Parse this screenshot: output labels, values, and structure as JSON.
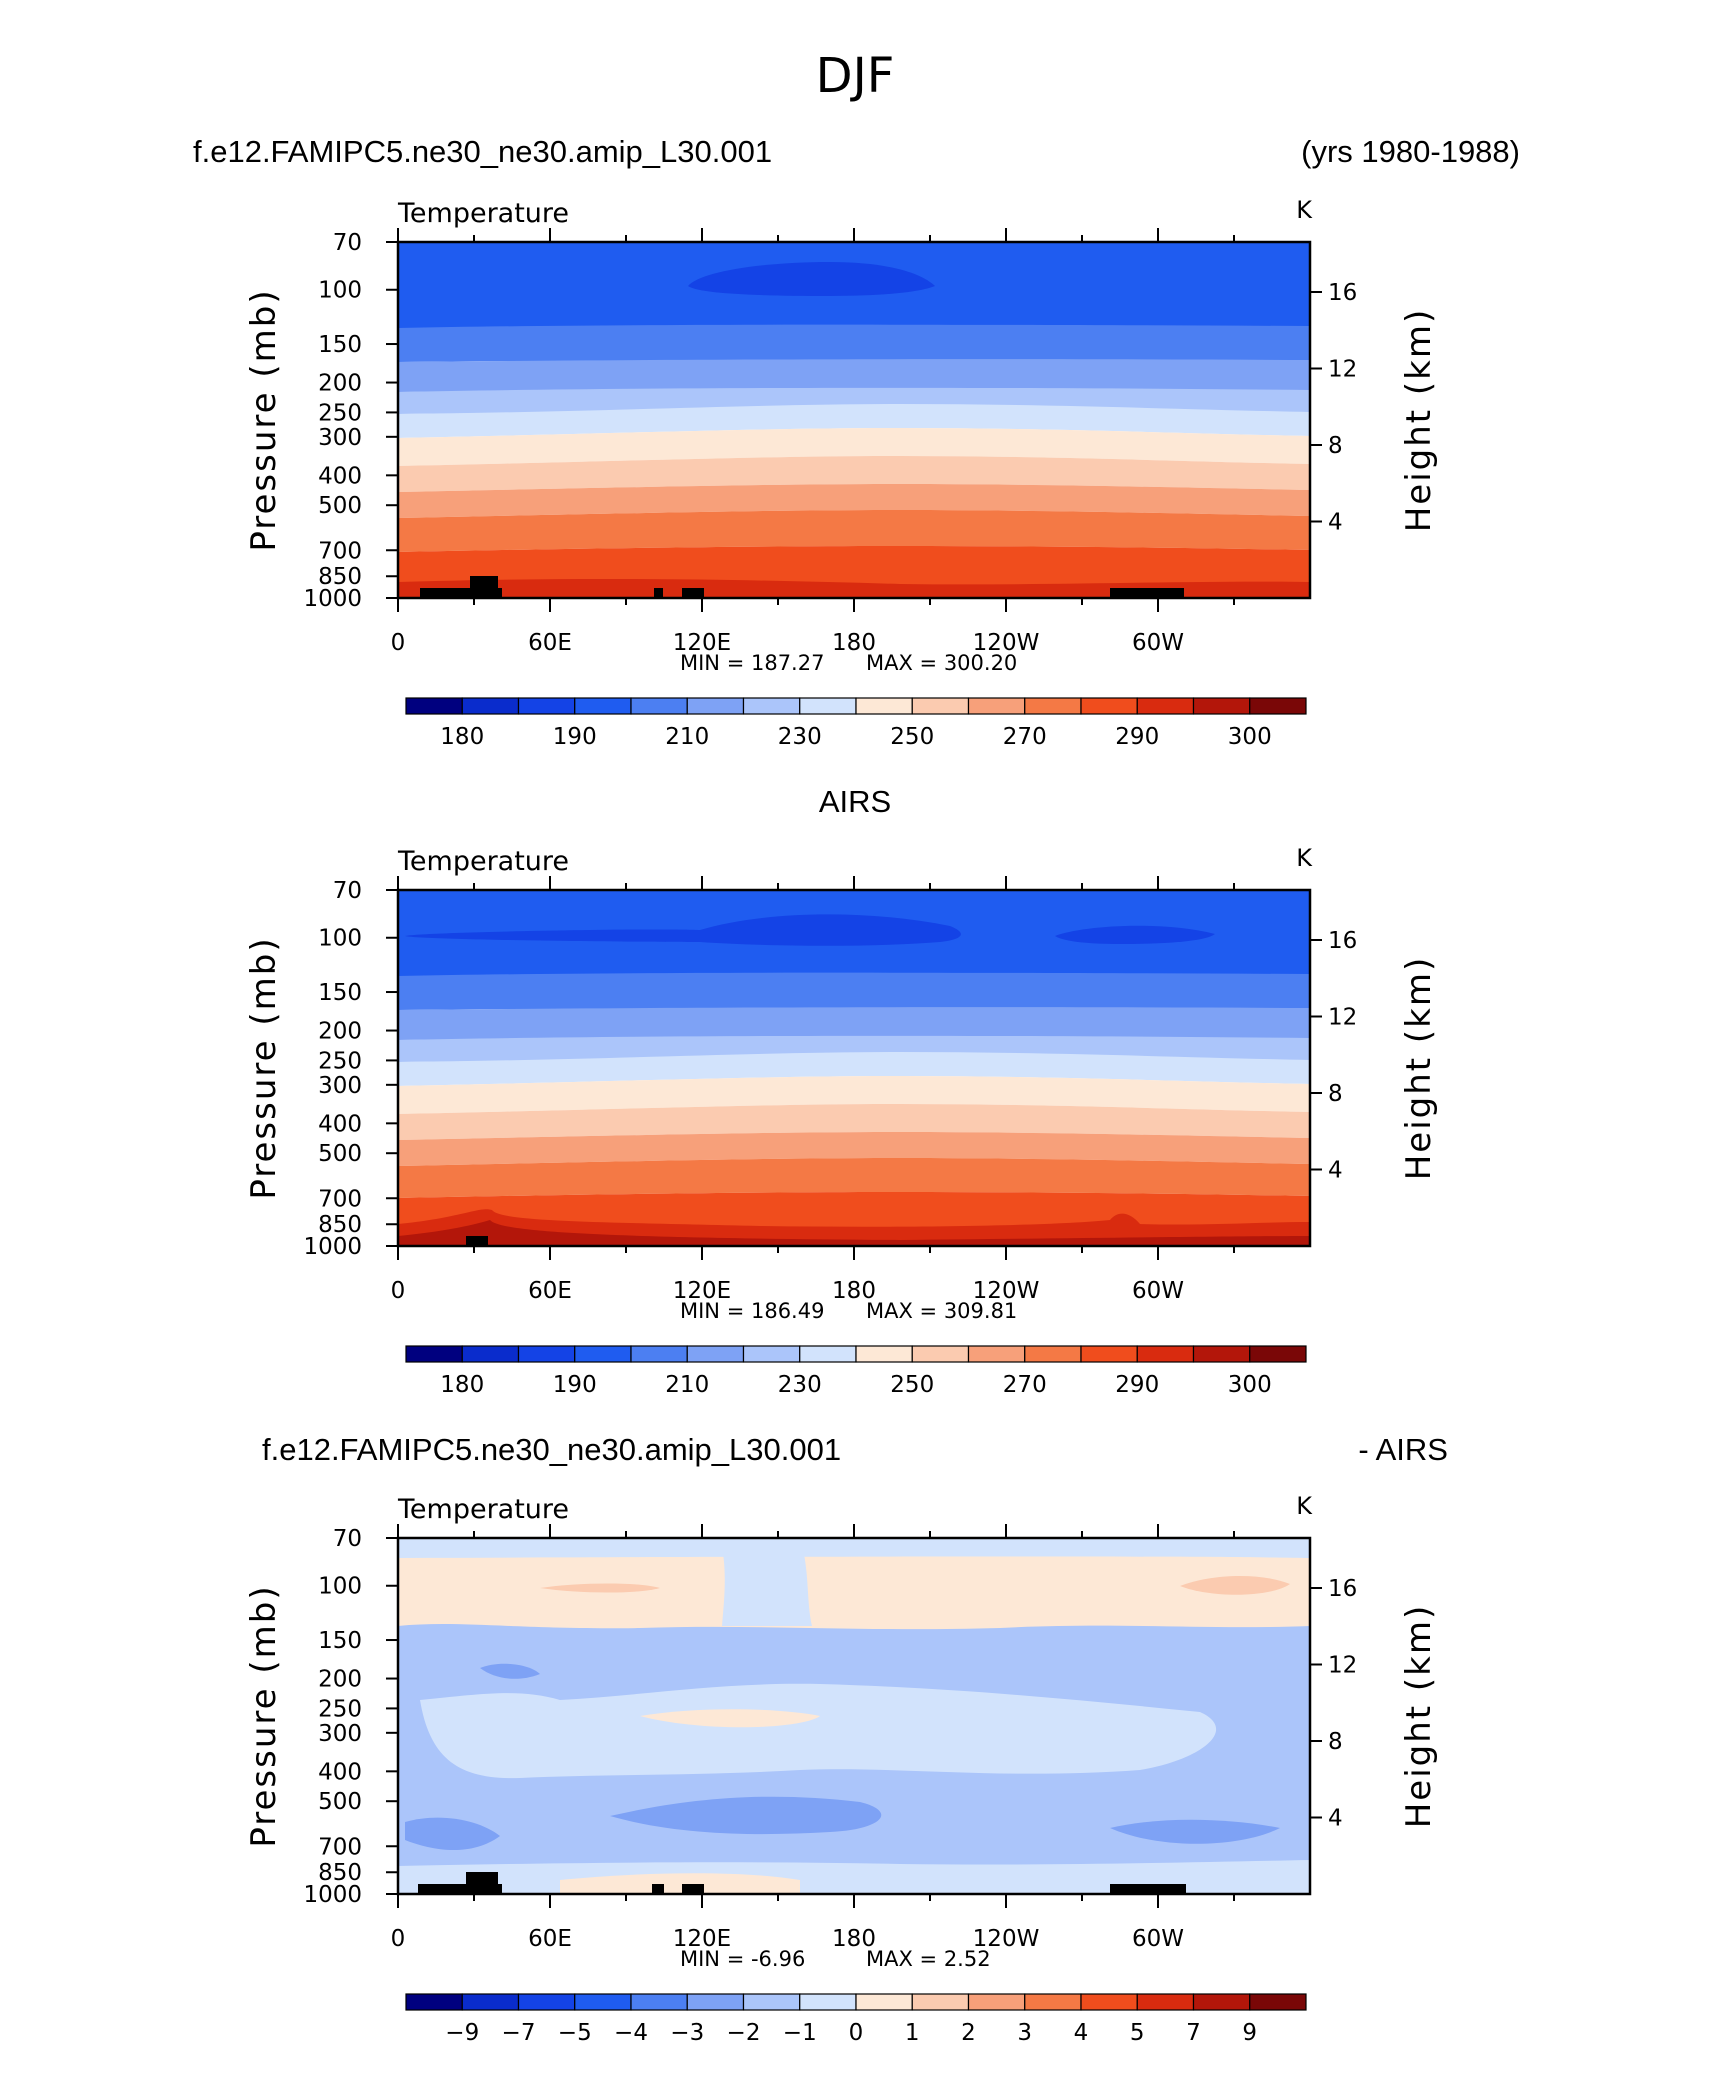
{
  "figure": {
    "title": "DJF",
    "panel_titles": {
      "p1_left": "f.e12.FAMIPC5.ne30_ne30.amip_L30.001",
      "p1_right": "(yrs 1980-1988)",
      "p2_center": "AIRS",
      "p3_left": "f.e12.FAMIPC5.ne30_ne30.amip_L30.001",
      "p3_right": "- AIRS"
    }
  },
  "chart_data": [
    {
      "id": "model",
      "type": "heatmap",
      "variable": "Temperature",
      "units": "K",
      "xlabel": "",
      "ylabel": "Pressure (mb)",
      "ylabel_right": "Height (km)",
      "x_ticks": [
        "0",
        "60E",
        "120E",
        "180",
        "120W",
        "60W"
      ],
      "x_tick_lon": [
        0,
        60,
        120,
        180,
        240,
        300
      ],
      "xlim": [
        0,
        360
      ],
      "y_ticks": [
        70,
        100,
        150,
        200,
        250,
        300,
        400,
        500,
        700,
        850,
        1000
      ],
      "ylim": [
        1000,
        70
      ],
      "height_ticks": [
        16,
        12,
        8,
        4
      ],
      "min_label": "MIN =  187.27",
      "max_label": "MAX =  300.20",
      "min": 187.27,
      "max": 300.2,
      "colorbar_levels": [
        180,
        185,
        190,
        200,
        210,
        220,
        230,
        240,
        250,
        260,
        270,
        280,
        290,
        295,
        300
      ],
      "colorbar_labels": [
        "180",
        "190",
        "210",
        "230",
        "250",
        "270",
        "290",
        "300"
      ],
      "colors": [
        "#00007f",
        "#0a2ccc",
        "#1443e6",
        "#1f5cf0",
        "#4c7ff2",
        "#7ea2f5",
        "#abc5fa",
        "#d2e3fc",
        "#fde8d6",
        "#fbcbb0",
        "#f7a07a",
        "#f47945",
        "#f04d1d",
        "#d92b0f",
        "#b3160a",
        "#7a0707"
      ],
      "profile": [
        {
          "p": 70,
          "T": 200
        },
        {
          "p": 100,
          "T": 196
        },
        {
          "p": 150,
          "T": 208
        },
        {
          "p": 200,
          "T": 216
        },
        {
          "p": 250,
          "T": 225
        },
        {
          "p": 300,
          "T": 236
        },
        {
          "p": 400,
          "T": 252
        },
        {
          "p": 500,
          "T": 262
        },
        {
          "p": 700,
          "T": 278
        },
        {
          "p": 850,
          "T": 287
        },
        {
          "p": 1000,
          "T": 297
        }
      ]
    },
    {
      "id": "airs",
      "type": "heatmap",
      "variable": "Temperature",
      "units": "K",
      "xlabel": "",
      "ylabel": "Pressure (mb)",
      "ylabel_right": "Height (km)",
      "x_ticks": [
        "0",
        "60E",
        "120E",
        "180",
        "120W",
        "60W"
      ],
      "x_tick_lon": [
        0,
        60,
        120,
        180,
        240,
        300
      ],
      "xlim": [
        0,
        360
      ],
      "y_ticks": [
        70,
        100,
        150,
        200,
        250,
        300,
        400,
        500,
        700,
        850,
        1000
      ],
      "ylim": [
        1000,
        70
      ],
      "height_ticks": [
        16,
        12,
        8,
        4
      ],
      "min_label": "MIN =  186.49",
      "max_label": "MAX =  309.81",
      "min": 186.49,
      "max": 309.81,
      "colorbar_levels": [
        180,
        185,
        190,
        200,
        210,
        220,
        230,
        240,
        250,
        260,
        270,
        280,
        290,
        295,
        300
      ],
      "colorbar_labels": [
        "180",
        "190",
        "210",
        "230",
        "250",
        "270",
        "290",
        "300"
      ],
      "colors": [
        "#00007f",
        "#0a2ccc",
        "#1443e6",
        "#1f5cf0",
        "#4c7ff2",
        "#7ea2f5",
        "#abc5fa",
        "#d2e3fc",
        "#fde8d6",
        "#fbcbb0",
        "#f7a07a",
        "#f47945",
        "#f04d1d",
        "#d92b0f",
        "#b3160a",
        "#7a0707"
      ]
    },
    {
      "id": "difference",
      "type": "heatmap",
      "variable": "Temperature",
      "units": "K",
      "xlabel": "",
      "ylabel": "Pressure (mb)",
      "ylabel_right": "Height (km)",
      "x_ticks": [
        "0",
        "60E",
        "120E",
        "180",
        "120W",
        "60W"
      ],
      "x_tick_lon": [
        0,
        60,
        120,
        180,
        240,
        300
      ],
      "xlim": [
        0,
        360
      ],
      "y_ticks": [
        70,
        100,
        150,
        200,
        250,
        300,
        400,
        500,
        700,
        850,
        1000
      ],
      "ylim": [
        1000,
        70
      ],
      "height_ticks": [
        16,
        12,
        8,
        4
      ],
      "min_label": "MIN =   -6.96",
      "max_label": "MAX =    2.52",
      "min": -6.96,
      "max": 2.52,
      "colorbar_levels": [
        -9,
        -7,
        -5,
        -4,
        -3,
        -2,
        -1,
        0,
        1,
        2,
        3,
        4,
        5,
        7,
        9
      ],
      "colorbar_labels": [
        "−9",
        "−7",
        "−5",
        "−4",
        "−3",
        "−2",
        "−1",
        "0",
        "1",
        "2",
        "3",
        "4",
        "5",
        "7",
        "9"
      ],
      "colors": [
        "#00007f",
        "#0a2ccc",
        "#1443e6",
        "#1f5cf0",
        "#4c7ff2",
        "#7ea2f5",
        "#abc5fa",
        "#d2e3fc",
        "#fde8d6",
        "#fbcbb0",
        "#f7a07a",
        "#f47945",
        "#f04d1d",
        "#d92b0f",
        "#b3160a",
        "#7a0707"
      ]
    }
  ]
}
